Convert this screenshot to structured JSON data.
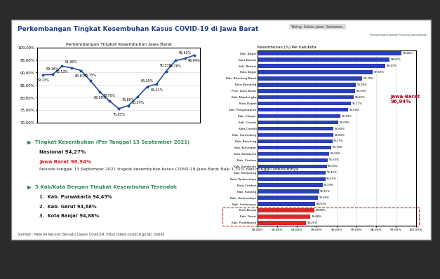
{
  "slide": {
    "title": "Perkembangan Tingkat Kesembuhan Kasus COVID-19 di Jawa Barat",
    "header": [
      "Taking: Sekda Jabar_Setiawan...",
      "Pemerintah Daerah Provinsi Jawa Barat"
    ],
    "section1": {
      "heading": "Tingkat Kesembuhan (Per Tanggal 13 September 2021)",
      "national": "Nasional 94,27%",
      "province": "Jawa Barat 96,94%",
      "note": "Periode tanggal 13 September 2021 tingkat kesembuhan kasus COVID-19 Jawa Barat Naik 1,32% dari minggu sebelumnya"
    },
    "section2": {
      "heading": "3 Kab/Kota Dengan Tingkat Kesembuhan Terendah",
      "items": [
        "1.  Kab. Purwakarta 94,45%",
        "2.  Kab. Garut 94,68%",
        "3.  Kota Banjar 94,88%"
      ]
    },
    "source": "Sumber : New All Record, Bersatu Lawan Covid-19, https://data.covid19.go.id/, Diolah"
  },
  "chart_data": [
    {
      "type": "line",
      "title": "Perkembangan Tingkat Kesembuhan Jawa Barat",
      "categories": [
        null,
        null,
        null,
        null,
        null,
        null,
        null,
        null,
        null,
        null,
        null,
        null,
        null,
        null,
        null,
        null,
        null
      ],
      "values": [
        89.13,
        89.16,
        92.53,
        91.9,
        90.81,
        86.75,
        82.29,
        78.7,
        75.63,
        76.8,
        80.34,
        84.35,
        85.41,
        90.53,
        94.78,
        95.62,
        96.94
      ],
      "value_labels": [
        "89,13%",
        "89,16%",
        "92,53%",
        "91,90%",
        "90,81%",
        "86,75%",
        "82,29%",
        "78,70%",
        "75,63%",
        "76,80%",
        "80,34%",
        "84,35%",
        "85,41%",
        "90,53%",
        "94,78%",
        "95,62%",
        "96,94%"
      ],
      "color": "#1f4e9c",
      "marker": "o",
      "data_labels": true,
      "grid": true,
      "ylim": [
        70,
        100
      ],
      "yticks": [
        {
          "value": 70,
          "label": "70,00%"
        },
        {
          "value": 75,
          "label": "75,00%"
        },
        {
          "value": 80,
          "label": "80,00%"
        },
        {
          "value": 85,
          "label": "85,00%"
        },
        {
          "value": 90,
          "label": "90,00%"
        },
        {
          "value": 95,
          "label": "95,00%"
        },
        {
          "value": 100,
          "label": "100,00%"
        }
      ]
    },
    {
      "type": "bar",
      "orientation": "horizontal",
      "title": "Kesembuhan (%) Per Kab/Kota",
      "annotation": [
        "Jawa Barat",
        "96,94%"
      ],
      "categories": [
        "Kab. Bogor",
        "Kota Bekasi",
        "Kab. Bekasi",
        "Kota Bogor",
        "Kab. Bandung Barat",
        "Kota Bandung",
        "Prov. Jawa Barat",
        "Kab. Majalengka",
        "Kota Depok",
        "Kab. Pangandaran",
        "Kab. Cianjur",
        "Kab. Ciamis",
        "Kota Cimahi",
        "Kab. Sumedang",
        "Kab. Bandung",
        "Kab. Kuningan",
        "Kota Sukabumi",
        "Kab. Cirebon",
        "Kab. Sukabumi",
        "Kab. Karawang",
        "Kota Tasikmalaya",
        "Kota Cirebon",
        "Kab. Subang",
        "Kab. Tasikmalaya",
        "Kab. Indramayu",
        "Kota Banjar",
        "Kab. Garut",
        "Kab. Purwakarta"
      ],
      "values": [
        99.28,
        98.67,
        98.47,
        97.83,
        97.3,
        96.98,
        96.94,
        96.86,
        96.72,
        96.58,
        96.19,
        96.09,
        95.84,
        95.83,
        95.79,
        95.74,
        95.62,
        95.56,
        95.5,
        95.45,
        95.43,
        95.29,
        95.12,
        95.06,
        94.91,
        94.88,
        94.68,
        94.45
      ],
      "value_labels": [
        "99,28%",
        "98,67%",
        "98,47%",
        "97,83%",
        "97,30%",
        "96,98%",
        "96,94%",
        "96,86%",
        "96,72%",
        "96,58%",
        "96,19%",
        "96,09%",
        "95,84%",
        "95,83%",
        "95,79%",
        "95,74%",
        "95,62%",
        "95,56%",
        "95,50%",
        "95,45%",
        "95,43%",
        "95,29%",
        "95,12%",
        "95,06%",
        "94,91%",
        "94,88%",
        "94,68%",
        "94,45%"
      ],
      "colors": [
        "#2a3fb8",
        "#2a3fb8",
        "#2a3fb8",
        "#2a3fb8",
        "#2a3fb8",
        "#2a3fb8",
        "#2a3fb8",
        "#2a3fb8",
        "#2a3fb8",
        "#2a3fb8",
        "#2a3fb8",
        "#2a3fb8",
        "#2a3fb8",
        "#2a3fb8",
        "#2a3fb8",
        "#2a3fb8",
        "#2a3fb8",
        "#2a3fb8",
        "#2a3fb8",
        "#2a3fb8",
        "#2a3fb8",
        "#2a3fb8",
        "#2a3fb8",
        "#2a3fb8",
        "#2a3fb8",
        "#d62828",
        "#d62828",
        "#d62828"
      ],
      "data_labels": true,
      "grid": true,
      "xlim": [
        92,
        100
      ],
      "xticks": [
        {
          "value": 92,
          "label": "92,00%"
        },
        {
          "value": 93,
          "label": "93,00%"
        },
        {
          "value": 94,
          "label": "94,00%"
        },
        {
          "value": 95,
          "label": "95,00%"
        },
        {
          "value": 96,
          "label": "96,00%"
        },
        {
          "value": 97,
          "label": "97,00%"
        },
        {
          "value": 98,
          "label": "98,00%"
        },
        {
          "value": 99,
          "label": "99,00%"
        },
        {
          "value": 100,
          "label": "100,00%"
        }
      ]
    }
  ]
}
